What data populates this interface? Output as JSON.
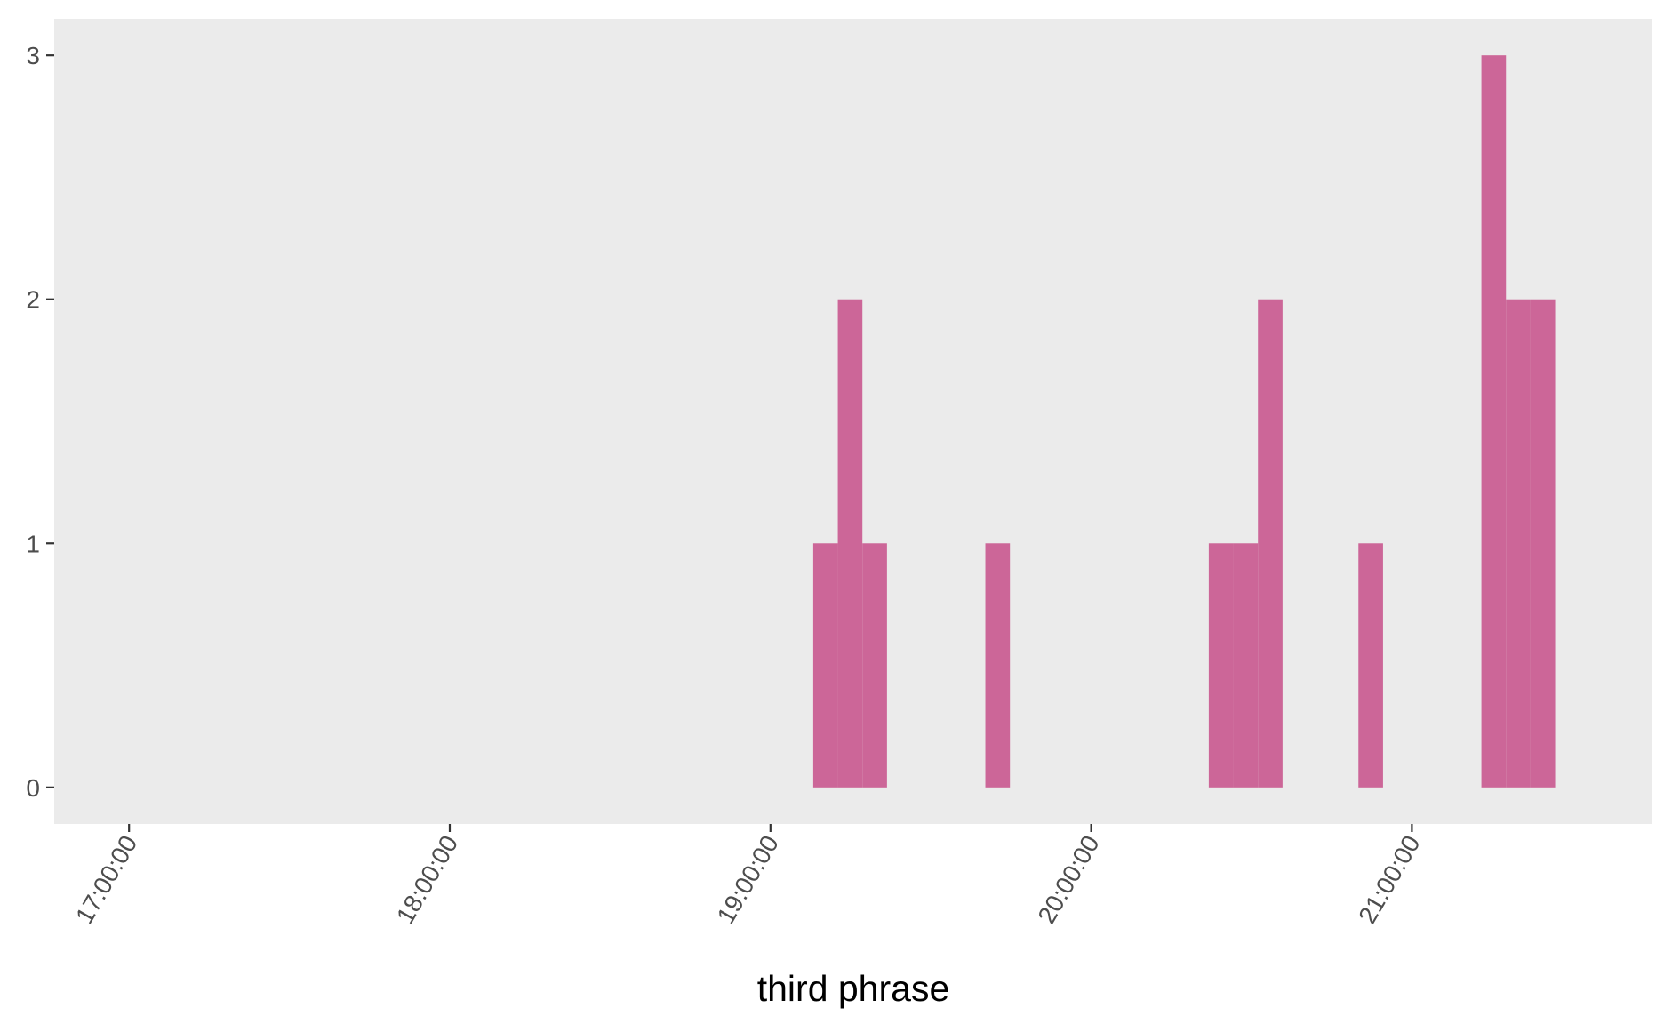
{
  "chart_data": {
    "type": "bar",
    "title": "",
    "xlabel": "third phrase",
    "ylabel": "",
    "x_axis": {
      "kind": "time",
      "ticks": [
        "17:00:00",
        "18:00:00",
        "19:00:00",
        "20:00:00",
        "21:00:00"
      ],
      "range": [
        "16:46:00",
        "21:45:00"
      ]
    },
    "y_axis": {
      "ticks": [
        0,
        1,
        2,
        3
      ],
      "range": [
        -0.15,
        3.15
      ]
    },
    "bin_width_minutes": 4.6,
    "bins": [
      {
        "start": "19:08:00",
        "end": "19:12:36",
        "count": 1
      },
      {
        "start": "19:12:36",
        "end": "19:17:12",
        "count": 2
      },
      {
        "start": "19:17:12",
        "end": "19:21:48",
        "count": 1
      },
      {
        "start": "19:40:12",
        "end": "19:44:48",
        "count": 1
      },
      {
        "start": "20:22:00",
        "end": "20:26:36",
        "count": 1
      },
      {
        "start": "20:26:36",
        "end": "20:31:12",
        "count": 1
      },
      {
        "start": "20:31:12",
        "end": "20:35:48",
        "count": 2
      },
      {
        "start": "20:50:00",
        "end": "20:54:36",
        "count": 1
      },
      {
        "start": "21:13:00",
        "end": "21:17:36",
        "count": 3
      },
      {
        "start": "21:17:36",
        "end": "21:22:12",
        "count": 2
      },
      {
        "start": "21:22:12",
        "end": "21:26:48",
        "count": 2
      }
    ],
    "colors": {
      "bar": "#cc6698",
      "panel": "#ebebeb",
      "tick_text": "#4d4d4d",
      "tick_line": "#333333"
    },
    "grid": false,
    "legend": "none"
  }
}
